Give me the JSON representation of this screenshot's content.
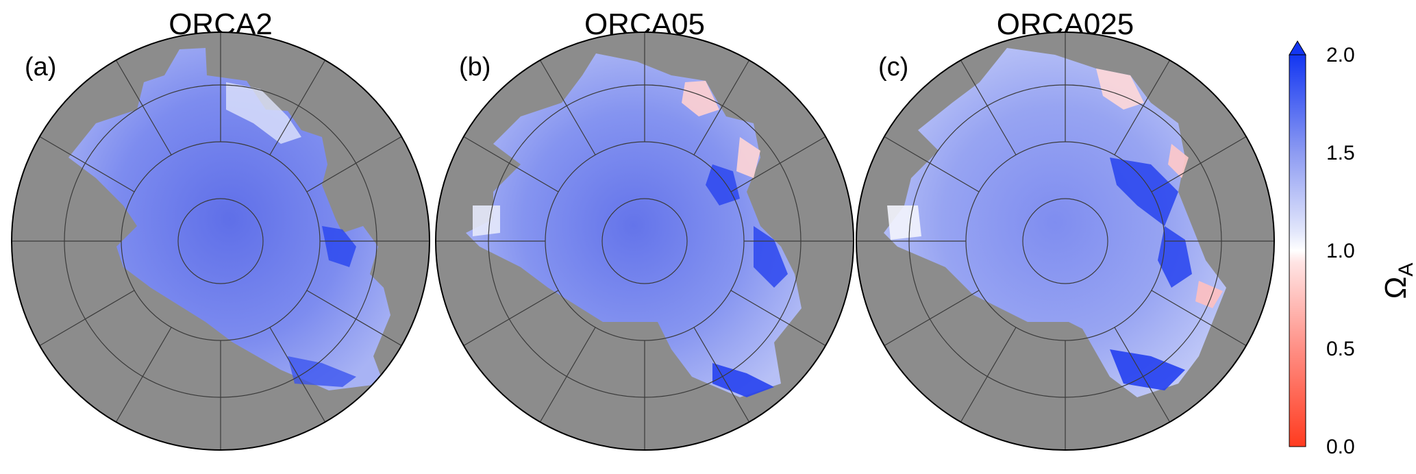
{
  "panels": [
    {
      "title": "ORCA2",
      "label": "(a)"
    },
    {
      "title": "ORCA05",
      "label": "(b)"
    },
    {
      "title": "ORCA025",
      "label": "(c)"
    }
  ],
  "colorbar": {
    "title": "Ω",
    "title_subscript": "A",
    "ticks": [
      "2.0",
      "1.5",
      "1.0",
      "0.5",
      "0.0"
    ],
    "range": [
      0.0,
      2.0
    ],
    "extend": "max",
    "colors": {
      "low": "#ff3b1f",
      "mid": "#ffffff",
      "high": "#1336f2"
    }
  },
  "map_colors": {
    "land": "#8c8c8c",
    "grid": "#3a3a3a",
    "coast": "#555555"
  }
}
